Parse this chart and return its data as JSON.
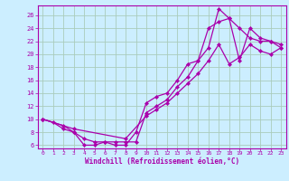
{
  "bg_color": "#cceeff",
  "grid_color": "#aaccbb",
  "line_color": "#aa00aa",
  "marker_color": "#aa00aa",
  "xlabel": "Windchill (Refroidissement éolien,°C)",
  "xlim": [
    -0.5,
    23.5
  ],
  "ylim": [
    5.5,
    27.5
  ],
  "xticks": [
    0,
    1,
    2,
    3,
    4,
    5,
    6,
    7,
    8,
    9,
    10,
    11,
    12,
    13,
    14,
    15,
    16,
    17,
    18,
    19,
    20,
    21,
    22,
    23
  ],
  "yticks": [
    6,
    8,
    10,
    12,
    14,
    16,
    18,
    20,
    22,
    24,
    26
  ],
  "curve1_x": [
    0,
    1,
    2,
    3,
    4,
    5,
    6,
    7,
    8,
    9,
    10,
    11,
    12,
    13,
    14,
    15,
    16,
    17,
    18,
    19,
    20,
    21,
    22,
    23
  ],
  "curve1_y": [
    10,
    9.5,
    8.5,
    8,
    6,
    6,
    6.5,
    6,
    6,
    8,
    12.5,
    13.5,
    14,
    16,
    18.5,
    19,
    24,
    25,
    25.5,
    24,
    22.5,
    22,
    22,
    21
  ],
  "curve2_x": [
    0,
    2,
    3,
    4,
    5,
    6,
    7,
    8,
    9,
    10,
    11,
    12,
    13,
    14,
    15,
    16,
    17,
    18,
    19,
    20,
    21,
    22,
    23
  ],
  "curve2_y": [
    10,
    9,
    8,
    7,
    6.5,
    6.5,
    6.5,
    6.5,
    6.5,
    11,
    12,
    13,
    15,
    16.5,
    19,
    21,
    27,
    25.5,
    19,
    24,
    22.5,
    22,
    21.5
  ],
  "curve3_x": [
    0,
    3,
    8,
    10,
    11,
    12,
    13,
    14,
    15,
    16,
    17,
    18,
    19,
    20,
    21,
    22,
    23
  ],
  "curve3_y": [
    10,
    8.5,
    7,
    10.5,
    11.5,
    12.5,
    14,
    15.5,
    17,
    19,
    21.5,
    18.5,
    19.5,
    21.5,
    20.5,
    20,
    21
  ]
}
